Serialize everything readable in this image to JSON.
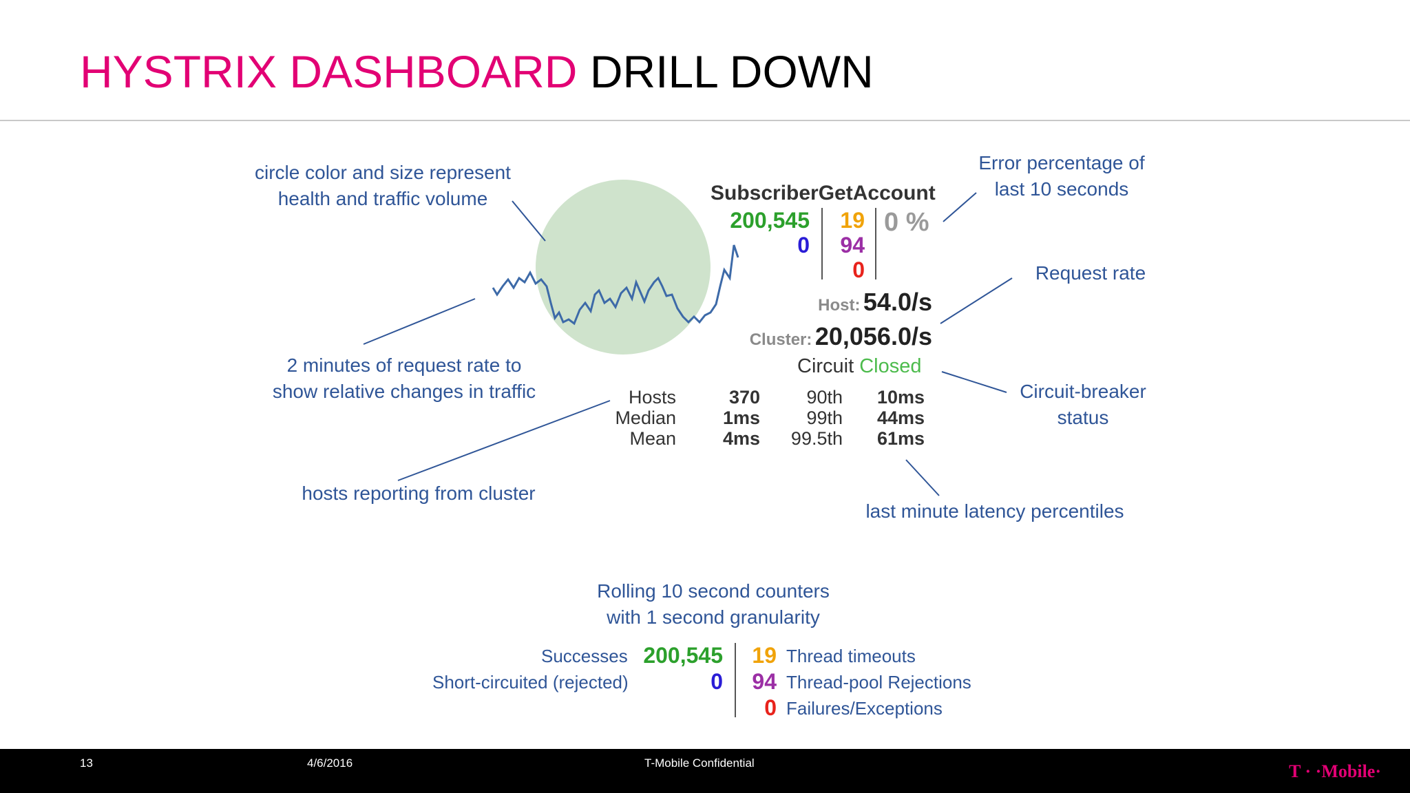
{
  "slide": {
    "title_accent": "HYSTRIX DASHBOARD",
    "title_rest": "DRILL DOWN"
  },
  "dashboard": {
    "command_name": "SubscriberGetAccount",
    "successes": "200,545",
    "short_circuited": "0",
    "thread_timeouts": "19",
    "thread_pool_rejections": "94",
    "failures": "0",
    "error_percentage": "0 %",
    "host_label": "Host:",
    "host_rate": "54.0/s",
    "cluster_label": "Cluster:",
    "cluster_rate": "20,056.0/s",
    "circuit_label": "Circuit",
    "circuit_state": "Closed",
    "stats": {
      "hosts_label": "Hosts",
      "hosts_value": "370",
      "median_label": "Median",
      "median_value": "1ms",
      "mean_label": "Mean",
      "mean_value": "4ms",
      "p90_label": "90th",
      "p90_value": "10ms",
      "p99_label": "99th",
      "p99_value": "44ms",
      "p995_label": "99.5th",
      "p995_value": "61ms"
    },
    "colors": {
      "success": "#2ca02c",
      "short_circuited": "#2a1dd6",
      "timeout": "#f0a30a",
      "rejection": "#9b2fa5",
      "failure": "#e8231c",
      "circle": "#cfe3cc",
      "sparkline": "#3d6aa8"
    }
  },
  "annotations": {
    "circle_line1": "circle color and size represent",
    "circle_line2": "health and traffic volume",
    "error_line1": "Error percentage of",
    "error_line2": "last 10 seconds",
    "request_rate": "Request rate",
    "sparkline_line1": "2 minutes of request rate to",
    "sparkline_line2": "show relative changes in traffic",
    "breaker_line1": "Circuit-breaker",
    "breaker_line2": "status",
    "hosts": "hosts reporting from cluster",
    "latency": "last minute latency percentiles",
    "counters_line1": "Rolling 10 second counters",
    "counters_line2": "with 1 second granularity"
  },
  "legend": {
    "successes": "Successes",
    "short_circuited": "Short-circuited (rejected)",
    "thread_timeouts": "Thread timeouts",
    "thread_pool_rejections": "Thread-pool Rejections",
    "failures": "Failures/Exceptions"
  },
  "footer": {
    "page_number": "13",
    "date": "4/6/2016",
    "confidential": "T-Mobile Confidential",
    "brand": "T · ·Mobile·"
  }
}
